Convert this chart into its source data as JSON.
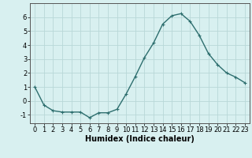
{
  "x": [
    0,
    1,
    2,
    3,
    4,
    5,
    6,
    7,
    8,
    9,
    10,
    11,
    12,
    13,
    14,
    15,
    16,
    17,
    18,
    19,
    20,
    21,
    22,
    23
  ],
  "y": [
    1.0,
    -0.3,
    -0.7,
    -0.8,
    -0.8,
    -0.8,
    -1.2,
    -0.85,
    -0.85,
    -0.6,
    0.5,
    1.75,
    3.1,
    4.15,
    5.5,
    6.1,
    6.25,
    5.7,
    4.7,
    3.4,
    2.6,
    2.0,
    1.7,
    1.3
  ],
  "line_color": "#2d6e6e",
  "marker": "+",
  "marker_size": 3,
  "bg_color": "#d8f0f0",
  "grid_color": "#b8d8d8",
  "xlabel": "Humidex (Indice chaleur)",
  "xlabel_fontsize": 7,
  "ylabel_ticks": [
    -1,
    0,
    1,
    2,
    3,
    4,
    5,
    6
  ],
  "xlim": [
    -0.5,
    23.5
  ],
  "ylim": [
    -1.6,
    7.0
  ],
  "tick_fontsize": 6,
  "line_width": 1.0
}
